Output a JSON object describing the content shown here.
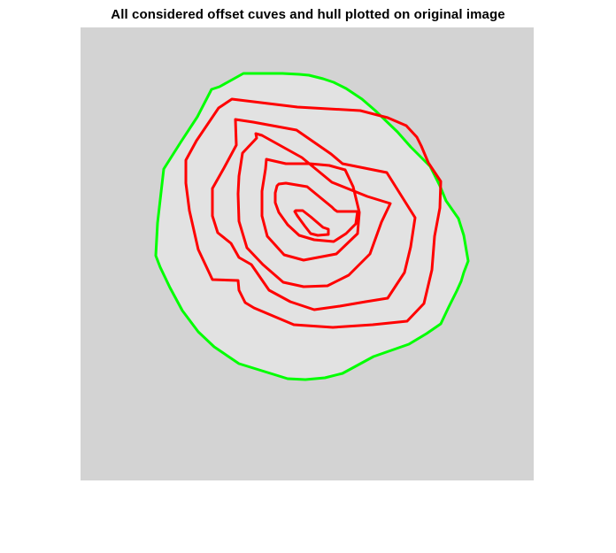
{
  "title": "All considered offset cuves and hull plotted on original image",
  "colors": {
    "background_image": "#d3d3d3",
    "specimen": "#e2e2e2",
    "hull": "#00ff00",
    "offset_curves": "#ff0000"
  },
  "chart_data": {
    "type": "line",
    "title": "All considered offset cuves and hull plotted on original image",
    "axes_visible": false,
    "xlim": [
      0,
      512
    ],
    "ylim": [
      0,
      512
    ],
    "y_direction": "reverse",
    "background": "grayscale image",
    "series": [
      {
        "role": "hull",
        "color": "#00ff00",
        "x": [
          184,
          207,
          228,
          247,
          258,
          274,
          286,
          300,
          318,
          333,
          358,
          373,
          395,
          406,
          413,
          427,
          433,
          438,
          433,
          430,
          425,
          416,
          407,
          391,
          371,
          331,
          296,
          276,
          254,
          234,
          179,
          151,
          133,
          115,
          101,
          90,
          85,
          87,
          94,
          113,
          132,
          148,
          157
        ],
        "y": [
          52,
          52,
          52,
          53,
          54,
          58,
          62,
          69,
          81,
          94,
          118,
          135,
          157,
          179,
          196,
          216,
          235,
          264,
          277,
          287,
          298,
          316,
          335,
          346,
          358,
          372,
          391,
          396,
          398,
          397,
          380,
          361,
          344,
          320,
          294,
          271,
          258,
          221,
          160,
          130,
          101,
          70,
          67
        ]
      },
      {
        "role": "offset_curve",
        "color": "#ff0000",
        "x": [
          171,
          245,
          316,
          347,
          368,
          380,
          385,
          393,
          407,
          406,
          400,
          397,
          388,
          369,
          330,
          285,
          241,
          196,
          186,
          179,
          178,
          149,
          133,
          123,
          119,
          119,
          131,
          156
        ],
        "y": [
          81,
          90,
          94,
          102,
          111,
          124,
          134,
          153,
          174,
          204,
          236,
          274,
          312,
          332,
          336,
          339,
          336,
          317,
          311,
          297,
          286,
          285,
          251,
          207,
          176,
          150,
          128,
          91
        ]
      },
      {
        "role": "offset_curve",
        "color": "#ff0000",
        "x": [
          175,
          195,
          244,
          283,
          296,
          346,
          378,
          373,
          366,
          347,
          322,
          293,
          264,
          237,
          213,
          204,
          193,
          179,
          170,
          155,
          149,
          149,
          162,
          176
        ],
        "y": [
          104,
          107,
          116,
          143,
          154,
          164,
          215,
          248,
          277,
          306,
          310,
          315,
          319,
          310,
          297,
          284,
          268,
          260,
          244,
          232,
          213,
          182,
          159,
          133
        ]
      },
      {
        "role": "offset_curve",
        "color": "#ff0000",
        "x": [
          198,
          205,
          250,
          284,
          324,
          350,
          340,
          327,
          303,
          279,
          252,
          229,
          206,
          188,
          179,
          178,
          179,
          183,
          199
        ],
        "y": [
          120,
          122,
          147,
          175,
          191,
          199,
          220,
          256,
          280,
          292,
          293,
          288,
          268,
          249,
          219,
          188,
          168,
          142,
          125
        ]
      },
      {
        "role": "offset_curve",
        "color": "#ff0000",
        "x": [
          210,
          232,
          259,
          281,
          299,
          308,
          315,
          313,
          289,
          252,
          230,
          211,
          205,
          205,
          209
        ],
        "y": [
          149,
          154,
          154,
          156,
          161,
          180,
          209,
          233,
          256,
          263,
          257,
          236,
          213,
          185,
          160
        ]
      },
      {
        "role": "offset_curve",
        "color": "#ff0000",
        "x": [
          224,
          232,
          256,
          284,
          287,
          290,
          313,
          311,
          300,
          286,
          264,
          247,
          234,
          224,
          220,
          220,
          222
        ],
        "y": [
          177,
          176,
          180,
          203,
          206,
          208,
          208,
          222,
          233,
          242,
          240,
          235,
          223,
          209,
          198,
          187,
          179
        ]
      },
      {
        "role": "offset_curve",
        "color": "#ff0000",
        "x": [
          243,
          251,
          260,
          274,
          280,
          280,
          268,
          260,
          253,
          245,
          242
        ],
        "y": [
          207,
          207,
          214,
          226,
          228,
          234,
          235,
          233,
          224,
          213,
          208
        ]
      }
    ]
  }
}
